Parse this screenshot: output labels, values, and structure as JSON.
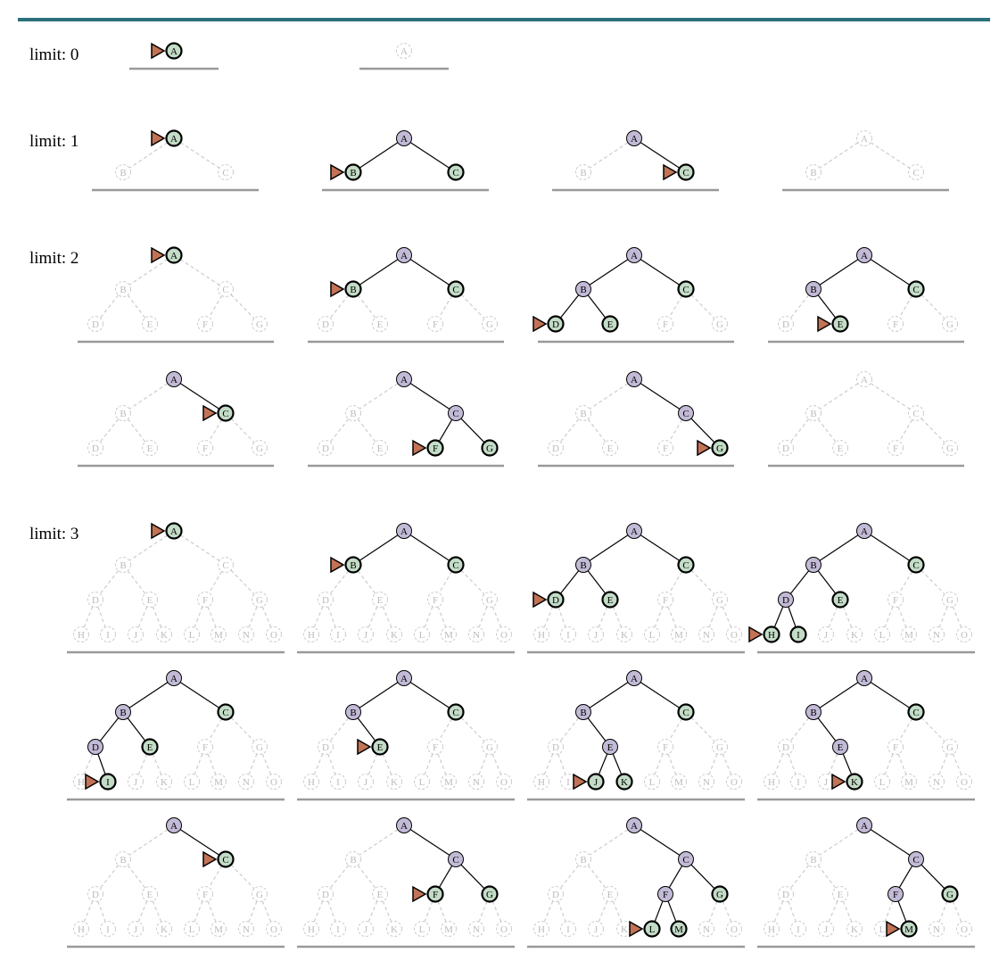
{
  "diagram": {
    "nodes": [
      "A",
      "B",
      "C",
      "D",
      "E",
      "F",
      "G",
      "H",
      "I",
      "J",
      "K",
      "L",
      "M",
      "N",
      "O"
    ],
    "colors": {
      "rule": "#2d6f7c",
      "frontier_fill": "#c3dcc7",
      "expanded_fill": "#c2bad6",
      "pointer_fill": "#c27355",
      "ground": "#999999",
      "unreached": "#cccccc"
    },
    "limits": [
      {
        "label": "limit: 0",
        "depth": 0,
        "steps": [
          {
            "expanded": [],
            "frontier": [
              "A"
            ],
            "pointer": "A"
          },
          {
            "expanded": [],
            "frontier": [],
            "pointer": null
          }
        ]
      },
      {
        "label": "limit: 1",
        "depth": 1,
        "steps": [
          {
            "expanded": [],
            "frontier": [
              "A"
            ],
            "pointer": "A"
          },
          {
            "expanded": [
              "A"
            ],
            "frontier": [
              "B",
              "C"
            ],
            "pointer": "B"
          },
          {
            "expanded": [
              "A"
            ],
            "frontier": [
              "C"
            ],
            "pointer": "C"
          },
          {
            "expanded": [],
            "frontier": [],
            "pointer": null
          }
        ]
      },
      {
        "label": "limit: 2",
        "depth": 2,
        "steps": [
          {
            "expanded": [],
            "frontier": [
              "A"
            ],
            "pointer": "A"
          },
          {
            "expanded": [
              "A"
            ],
            "frontier": [
              "B",
              "C"
            ],
            "pointer": "B"
          },
          {
            "expanded": [
              "A",
              "B"
            ],
            "frontier": [
              "C",
              "D",
              "E"
            ],
            "pointer": "D"
          },
          {
            "expanded": [
              "A",
              "B"
            ],
            "frontier": [
              "C",
              "E"
            ],
            "pointer": "E"
          },
          {
            "expanded": [
              "A"
            ],
            "frontier": [
              "C"
            ],
            "pointer": "C"
          },
          {
            "expanded": [
              "A",
              "C"
            ],
            "frontier": [
              "F",
              "G"
            ],
            "pointer": "F"
          },
          {
            "expanded": [
              "A",
              "C"
            ],
            "frontier": [
              "G"
            ],
            "pointer": "G"
          },
          {
            "expanded": [],
            "frontier": [],
            "pointer": null
          }
        ]
      },
      {
        "label": "limit: 3",
        "depth": 3,
        "steps": [
          {
            "expanded": [],
            "frontier": [
              "A"
            ],
            "pointer": "A"
          },
          {
            "expanded": [
              "A"
            ],
            "frontier": [
              "B",
              "C"
            ],
            "pointer": "B"
          },
          {
            "expanded": [
              "A",
              "B"
            ],
            "frontier": [
              "C",
              "D",
              "E"
            ],
            "pointer": "D"
          },
          {
            "expanded": [
              "A",
              "B",
              "D"
            ],
            "frontier": [
              "C",
              "E",
              "H",
              "I"
            ],
            "pointer": "H"
          },
          {
            "expanded": [
              "A",
              "B",
              "D"
            ],
            "frontier": [
              "C",
              "E",
              "I"
            ],
            "pointer": "I"
          },
          {
            "expanded": [
              "A",
              "B"
            ],
            "frontier": [
              "C",
              "E"
            ],
            "pointer": "E"
          },
          {
            "expanded": [
              "A",
              "B",
              "E"
            ],
            "frontier": [
              "C",
              "J",
              "K"
            ],
            "pointer": "J"
          },
          {
            "expanded": [
              "A",
              "B",
              "E"
            ],
            "frontier": [
              "C",
              "K"
            ],
            "pointer": "K"
          },
          {
            "expanded": [
              "A"
            ],
            "frontier": [
              "C"
            ],
            "pointer": "C"
          },
          {
            "expanded": [
              "A",
              "C"
            ],
            "frontier": [
              "F",
              "G"
            ],
            "pointer": "F"
          },
          {
            "expanded": [
              "A",
              "C",
              "F"
            ],
            "frontier": [
              "G",
              "L",
              "M"
            ],
            "pointer": "L"
          },
          {
            "expanded": [
              "A",
              "C",
              "F"
            ],
            "frontier": [
              "G",
              "M"
            ],
            "pointer": "M"
          }
        ]
      }
    ]
  }
}
